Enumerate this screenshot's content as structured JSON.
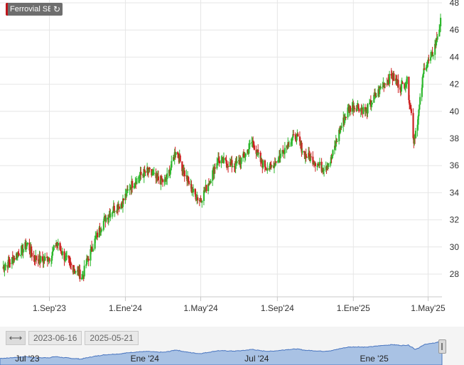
{
  "legend": {
    "name": "Ferrovial SE",
    "series_color": "#c0151b",
    "refresh_icon": "refresh-icon"
  },
  "range_selector": {
    "from": "2023-06-16",
    "to": "2025-05-21",
    "handle_icon": "double-arrow-icon"
  },
  "navigator": {
    "labels": [
      "Jul '23",
      "Ene '24",
      "Jul '24",
      "Ene '25"
    ]
  },
  "colors": {
    "up": "#2eb82e",
    "down": "#cc1f1f",
    "navigator_fill": "#a9c2e4",
    "navigator_line": "#4a76c0"
  },
  "chart_data": {
    "type": "candlestick",
    "title": "Ferrovial SE",
    "x_tick_labels": [
      "1.Sep'23",
      "1.Ene'24",
      "1.May'24",
      "1.Sep'24",
      "1.Ene'25",
      "1.May'25"
    ],
    "y_ticks": [
      28,
      30,
      32,
      34,
      36,
      38,
      40,
      42,
      44,
      46,
      48
    ],
    "ylim": [
      26.5,
      48
    ],
    "xlim": [
      "2023-06-16",
      "2025-05-21"
    ],
    "grid": true,
    "closes": [
      [
        "2023-06-16",
        28.4
      ],
      [
        "2023-06-30",
        28.9
      ],
      [
        "2023-07-14",
        29.6
      ],
      [
        "2023-07-28",
        30.2
      ],
      [
        "2023-08-07",
        29.2
      ],
      [
        "2023-08-21",
        29.0
      ],
      [
        "2023-09-04",
        29.3
      ],
      [
        "2023-09-12",
        30.3
      ],
      [
        "2023-09-26",
        29.2
      ],
      [
        "2023-10-10",
        28.4
      ],
      [
        "2023-10-24",
        27.8
      ],
      [
        "2023-10-31",
        28.9
      ],
      [
        "2023-11-14",
        30.6
      ],
      [
        "2023-11-28",
        32.0
      ],
      [
        "2023-12-12",
        32.8
      ],
      [
        "2023-12-26",
        33.2
      ],
      [
        "2024-01-09",
        34.5
      ],
      [
        "2024-01-23",
        35.2
      ],
      [
        "2024-02-06",
        35.6
      ],
      [
        "2024-02-20",
        35.0
      ],
      [
        "2024-03-05",
        34.8
      ],
      [
        "2024-03-15",
        36.0
      ],
      [
        "2024-03-22",
        37.2
      ],
      [
        "2024-04-05",
        35.4
      ],
      [
        "2024-04-19",
        34.0
      ],
      [
        "2024-04-30",
        33.4
      ],
      [
        "2024-05-14",
        34.8
      ],
      [
        "2024-05-28",
        36.4
      ],
      [
        "2024-06-11",
        36.2
      ],
      [
        "2024-06-25",
        36.0
      ],
      [
        "2024-07-09",
        36.6
      ],
      [
        "2024-07-23",
        37.8
      ],
      [
        "2024-08-06",
        36.2
      ],
      [
        "2024-08-20",
        35.8
      ],
      [
        "2024-09-03",
        36.6
      ],
      [
        "2024-09-17",
        37.6
      ],
      [
        "2024-10-01",
        38.2
      ],
      [
        "2024-10-15",
        36.8
      ],
      [
        "2024-10-29",
        36.4
      ],
      [
        "2024-11-12",
        35.8
      ],
      [
        "2024-11-26",
        36.4
      ],
      [
        "2024-12-10",
        38.6
      ],
      [
        "2024-12-24",
        40.2
      ],
      [
        "2025-01-07",
        40.4
      ],
      [
        "2025-01-21",
        40.0
      ],
      [
        "2025-02-04",
        41.0
      ],
      [
        "2025-02-18",
        42.0
      ],
      [
        "2025-03-04",
        42.6
      ],
      [
        "2025-03-18",
        41.8
      ],
      [
        "2025-03-28",
        42.2
      ],
      [
        "2025-04-04",
        39.8
      ],
      [
        "2025-04-08",
        37.8
      ],
      [
        "2025-04-15",
        39.6
      ],
      [
        "2025-04-25",
        43.4
      ],
      [
        "2025-05-05",
        43.8
      ],
      [
        "2025-05-13",
        45.0
      ],
      [
        "2025-05-21",
        46.6
      ]
    ]
  }
}
